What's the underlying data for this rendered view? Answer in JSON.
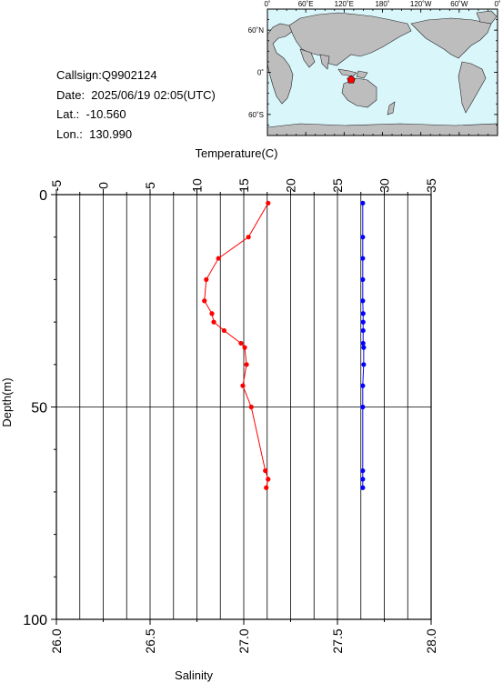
{
  "station": {
    "callsign": "Callsign:Q9902124",
    "date": "Date:  2025/06/19 02:05(UTC)",
    "lat": "Lat.:  -10.560",
    "lon": "Lon.:  130.990"
  },
  "map": {
    "top_labels": [
      "0˚",
      "60˚E",
      "120˚E",
      "180˚",
      "120˚W",
      "60˚W",
      "0˚"
    ],
    "left_labels": [
      "60˚N",
      "0˚",
      "60˚S"
    ],
    "ocean_color": "#d9f6fb",
    "land_color": "#bdbdbd",
    "marker_color": "#ff0000",
    "marker_lat": -10.56,
    "marker_lon": 130.99
  },
  "chart_data": {
    "type": "line",
    "ylabel": "Depth(m)",
    "ylim": [
      100,
      0
    ],
    "yticks": [
      "0",
      "50",
      "100"
    ],
    "x_top": {
      "label": "Temperature(C)",
      "range": [
        -5,
        35
      ],
      "ticks": [
        "-5",
        "0",
        "5",
        "10",
        "15",
        "20",
        "25",
        "30",
        "35"
      ]
    },
    "x_bottom": {
      "label": "Salinity",
      "range": [
        26.0,
        28.0
      ],
      "ticks": [
        "26.0",
        "26.5",
        "27.0",
        "27.5",
        "28.0"
      ]
    },
    "grid": true,
    "series": [
      {
        "axis": "top",
        "color": "#ff0000",
        "depth": [
          2,
          10,
          15,
          20,
          25,
          28,
          30,
          32,
          35,
          36,
          40,
          45,
          50,
          65,
          67,
          69
        ],
        "values": [
          17.6,
          15.5,
          12.3,
          11.0,
          10.8,
          11.6,
          11.8,
          12.9,
          14.7,
          15.1,
          15.3,
          14.9,
          15.8,
          17.3,
          17.6,
          17.4
        ]
      },
      {
        "axis": "bottom",
        "color": "#0000ff",
        "depth": [
          2,
          10,
          15,
          20,
          25,
          28,
          30,
          32,
          35,
          36,
          40,
          45,
          50,
          65,
          67,
          69
        ],
        "values": [
          27.635,
          27.635,
          27.635,
          27.635,
          27.635,
          27.637,
          27.637,
          27.637,
          27.637,
          27.64,
          27.64,
          27.635,
          27.635,
          27.635,
          27.635,
          27.635
        ]
      }
    ]
  }
}
